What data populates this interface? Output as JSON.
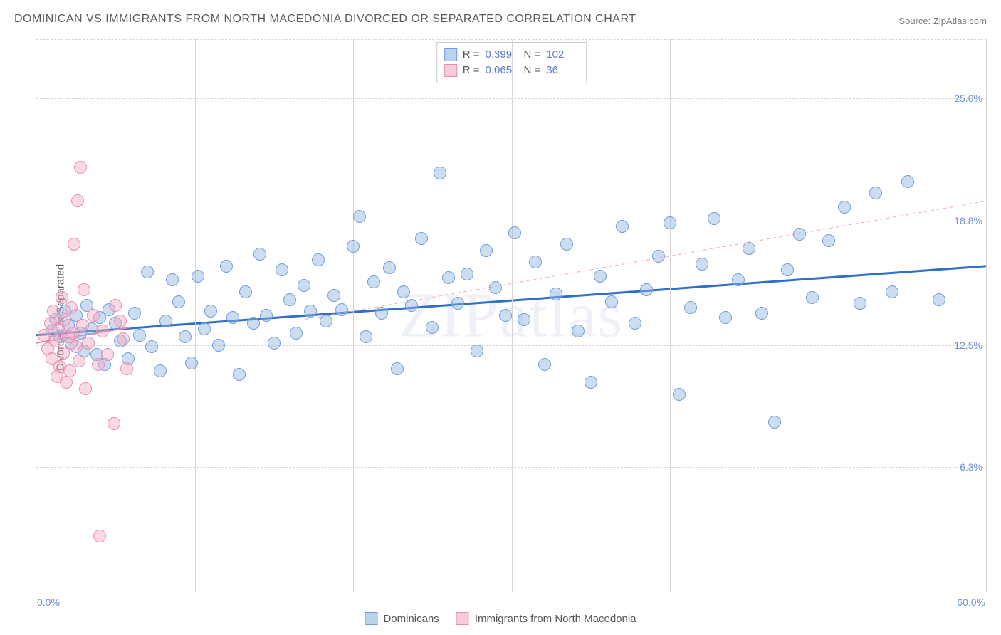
{
  "title": "DOMINICAN VS IMMIGRANTS FROM NORTH MACEDONIA DIVORCED OR SEPARATED CORRELATION CHART",
  "source_label": "Source: ",
  "source_name": "ZipAtlas.com",
  "y_axis_label": "Divorced or Separated",
  "watermark": "ZIPatlas",
  "chart": {
    "type": "scatter",
    "xlim": [
      0,
      60
    ],
    "ylim": [
      0,
      28
    ],
    "x_min_label": "0.0%",
    "x_max_label": "60.0%",
    "y_ticks": [
      6.3,
      12.5,
      18.8,
      25.0
    ],
    "y_tick_labels": [
      "6.3%",
      "12.5%",
      "18.8%",
      "25.0%"
    ],
    "x_grid_ticks": [
      10,
      20,
      30,
      40,
      50
    ],
    "background_color": "#ffffff",
    "grid_color": "#d5d5d5",
    "series": [
      {
        "key": "dominicans",
        "label": "Dominicans",
        "color_fill": "rgba(142,180,227,0.45)",
        "color_stroke": "#6f9fd6",
        "R": "0.399",
        "N": "102",
        "trend": {
          "x1": 0,
          "y1": 13.0,
          "x2": 60,
          "y2": 16.5,
          "stroke": "#2f6fc9",
          "width": 3,
          "dash": "none"
        },
        "trend_ext": {
          "x1": 17,
          "y1": 13.8,
          "x2": 60,
          "y2": 19.8,
          "stroke": "#f2a8bd",
          "width": 1,
          "dash": "5,4"
        },
        "points": [
          [
            1,
            13.2
          ],
          [
            1.2,
            13.8
          ],
          [
            1.5,
            12.9
          ],
          [
            1.8,
            14.2
          ],
          [
            2,
            13.5
          ],
          [
            2.2,
            12.6
          ],
          [
            2.5,
            14.0
          ],
          [
            2.8,
            13.1
          ],
          [
            3,
            12.2
          ],
          [
            3.2,
            14.5
          ],
          [
            3.5,
            13.3
          ],
          [
            3.8,
            12.0
          ],
          [
            4,
            13.9
          ],
          [
            4.3,
            11.5
          ],
          [
            4.6,
            14.3
          ],
          [
            5,
            13.6
          ],
          [
            5.3,
            12.7
          ],
          [
            5.8,
            11.8
          ],
          [
            6.2,
            14.1
          ],
          [
            6.5,
            13.0
          ],
          [
            7,
            16.2
          ],
          [
            7.3,
            12.4
          ],
          [
            7.8,
            11.2
          ],
          [
            8.2,
            13.7
          ],
          [
            8.6,
            15.8
          ],
          [
            9,
            14.7
          ],
          [
            9.4,
            12.9
          ],
          [
            9.8,
            11.6
          ],
          [
            10.2,
            16.0
          ],
          [
            10.6,
            13.3
          ],
          [
            11,
            14.2
          ],
          [
            11.5,
            12.5
          ],
          [
            12,
            16.5
          ],
          [
            12.4,
            13.9
          ],
          [
            12.8,
            11.0
          ],
          [
            13.2,
            15.2
          ],
          [
            13.7,
            13.6
          ],
          [
            14.1,
            17.1
          ],
          [
            14.5,
            14.0
          ],
          [
            15,
            12.6
          ],
          [
            15.5,
            16.3
          ],
          [
            16,
            14.8
          ],
          [
            16.4,
            13.1
          ],
          [
            16.9,
            15.5
          ],
          [
            17.3,
            14.2
          ],
          [
            17.8,
            16.8
          ],
          [
            18.3,
            13.7
          ],
          [
            18.8,
            15.0
          ],
          [
            19.3,
            14.3
          ],
          [
            20,
            17.5
          ],
          [
            20.4,
            19.0
          ],
          [
            20.8,
            12.9
          ],
          [
            21.3,
            15.7
          ],
          [
            21.8,
            14.1
          ],
          [
            22.3,
            16.4
          ],
          [
            22.8,
            11.3
          ],
          [
            23.2,
            15.2
          ],
          [
            23.7,
            14.5
          ],
          [
            24.3,
            17.9
          ],
          [
            25,
            13.4
          ],
          [
            25.5,
            21.2
          ],
          [
            26,
            15.9
          ],
          [
            26.6,
            14.6
          ],
          [
            27.2,
            16.1
          ],
          [
            27.8,
            12.2
          ],
          [
            28.4,
            17.3
          ],
          [
            29,
            15.4
          ],
          [
            29.6,
            14.0
          ],
          [
            30.2,
            18.2
          ],
          [
            30.8,
            13.8
          ],
          [
            31.5,
            16.7
          ],
          [
            32.1,
            11.5
          ],
          [
            32.8,
            15.1
          ],
          [
            33.5,
            17.6
          ],
          [
            34.2,
            13.2
          ],
          [
            35,
            10.6
          ],
          [
            35.6,
            16.0
          ],
          [
            36.3,
            14.7
          ],
          [
            37,
            18.5
          ],
          [
            37.8,
            13.6
          ],
          [
            38.5,
            15.3
          ],
          [
            39.3,
            17.0
          ],
          [
            40,
            18.7
          ],
          [
            40.6,
            10.0
          ],
          [
            41.3,
            14.4
          ],
          [
            42,
            16.6
          ],
          [
            42.8,
            18.9
          ],
          [
            43.5,
            13.9
          ],
          [
            44.3,
            15.8
          ],
          [
            45,
            17.4
          ],
          [
            45.8,
            14.1
          ],
          [
            46.6,
            8.6
          ],
          [
            47.4,
            16.3
          ],
          [
            48.2,
            18.1
          ],
          [
            49,
            14.9
          ],
          [
            50,
            17.8
          ],
          [
            51,
            19.5
          ],
          [
            52,
            14.6
          ],
          [
            53,
            20.2
          ],
          [
            54,
            15.2
          ],
          [
            55,
            20.8
          ],
          [
            57,
            14.8
          ]
        ]
      },
      {
        "key": "macedonia",
        "label": "Immigrants from North Macedonia",
        "color_fill": "rgba(246,170,195,0.45)",
        "color_stroke": "#e68fb0",
        "R": "0.065",
        "N": "36",
        "trend": {
          "x1": 0,
          "y1": 12.6,
          "x2": 6,
          "y2": 13.4,
          "stroke": "#e684a8",
          "width": 2,
          "dash": "none"
        },
        "points": [
          [
            0.5,
            13.0
          ],
          [
            0.7,
            12.3
          ],
          [
            0.9,
            13.6
          ],
          [
            1.0,
            11.8
          ],
          [
            1.1,
            14.2
          ],
          [
            1.2,
            12.7
          ],
          [
            1.3,
            10.9
          ],
          [
            1.4,
            13.3
          ],
          [
            1.5,
            11.4
          ],
          [
            1.6,
            14.9
          ],
          [
            1.7,
            12.1
          ],
          [
            1.8,
            13.8
          ],
          [
            1.9,
            10.6
          ],
          [
            2.0,
            12.9
          ],
          [
            2.1,
            11.2
          ],
          [
            2.2,
            14.4
          ],
          [
            2.3,
            13.1
          ],
          [
            2.5,
            12.4
          ],
          [
            2.7,
            11.7
          ],
          [
            2.9,
            13.5
          ],
          [
            3.1,
            10.3
          ],
          [
            3.3,
            12.6
          ],
          [
            3.6,
            14.0
          ],
          [
            3.9,
            11.5
          ],
          [
            4.2,
            13.2
          ],
          [
            4.5,
            12.0
          ],
          [
            4.9,
            8.5
          ],
          [
            5.3,
            13.7
          ],
          [
            5.7,
            11.3
          ],
          [
            2.4,
            17.6
          ],
          [
            2.6,
            19.8
          ],
          [
            2.8,
            21.5
          ],
          [
            3.0,
            15.3
          ],
          [
            4.0,
            2.8
          ],
          [
            5.0,
            14.5
          ],
          [
            5.5,
            12.8
          ]
        ]
      }
    ]
  },
  "legend_top": {
    "r_label": "R = ",
    "n_label": "N = "
  }
}
